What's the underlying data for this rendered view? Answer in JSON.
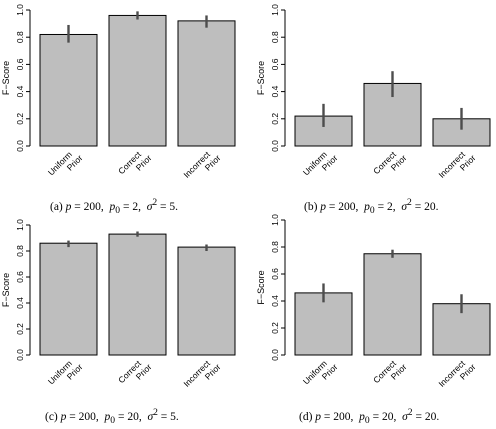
{
  "chart_data": [
    {
      "type": "bar",
      "categories": [
        "Uniform Prior",
        "Correct Prior",
        "Incorrect Prior"
      ],
      "category_lines": [
        [
          "Uniform",
          "Prior"
        ],
        [
          "Correct",
          "Prior"
        ],
        [
          "Incorrect",
          "Prior"
        ]
      ],
      "values": [
        0.82,
        0.96,
        0.92
      ],
      "error_low": [
        0.76,
        0.93,
        0.87
      ],
      "error_high": [
        0.89,
        0.99,
        0.96
      ],
      "ylabel": "F−Score",
      "ylim": [
        0,
        1
      ],
      "yticks": [
        "0.0",
        "0.2",
        "0.4",
        "0.6",
        "0.8",
        "1.0"
      ],
      "caption": {
        "tag": "(a)",
        "p": "200",
        "p0": "2",
        "sigma2": "5"
      }
    },
    {
      "type": "bar",
      "categories": [
        "Uniform Prior",
        "Correct Prior",
        "Incorrect Prior"
      ],
      "category_lines": [
        [
          "Uniform",
          "Prior"
        ],
        [
          "Correct",
          "Prior"
        ],
        [
          "Incorrect",
          "Prior"
        ]
      ],
      "values": [
        0.22,
        0.46,
        0.2
      ],
      "error_low": [
        0.14,
        0.36,
        0.12
      ],
      "error_high": [
        0.31,
        0.55,
        0.28
      ],
      "ylabel": "F−Score",
      "ylim": [
        0,
        1
      ],
      "yticks": [
        "0.0",
        "0.2",
        "0.4",
        "0.6",
        "0.8",
        "1.0"
      ],
      "caption": {
        "tag": "(b)",
        "p": "200",
        "p0": "2",
        "sigma2": "20"
      }
    },
    {
      "type": "bar",
      "categories": [
        "Uniform Prior",
        "Correct Prior",
        "Incorrect Prior"
      ],
      "category_lines": [
        [
          "Uniform",
          "Prior"
        ],
        [
          "Correct",
          "Prior"
        ],
        [
          "Incorrect",
          "Prior"
        ]
      ],
      "values": [
        0.86,
        0.93,
        0.83
      ],
      "error_low": [
        0.83,
        0.91,
        0.8
      ],
      "error_high": [
        0.88,
        0.95,
        0.85
      ],
      "ylabel": "F−Score",
      "ylim": [
        0,
        1
      ],
      "yticks": [
        "0.0",
        "0.2",
        "0.4",
        "0.6",
        "0.8",
        "1.0"
      ],
      "caption": {
        "tag": "(c)",
        "p": "200",
        "p0": "20",
        "sigma2": "5"
      }
    },
    {
      "type": "bar",
      "categories": [
        "Uniform Prior",
        "Correct Prior",
        "Incorrect Prior"
      ],
      "category_lines": [
        [
          "Uniform",
          "Prior"
        ],
        [
          "Correct",
          "Prior"
        ],
        [
          "Incorrect",
          "Prior"
        ]
      ],
      "values": [
        0.46,
        0.75,
        0.38
      ],
      "error_low": [
        0.39,
        0.72,
        0.31
      ],
      "error_high": [
        0.53,
        0.78,
        0.45
      ],
      "ylabel": "F−Score",
      "ylim": [
        0,
        1
      ],
      "yticks": [
        "0.0",
        "0.2",
        "0.4",
        "0.6",
        "0.8",
        "1.0"
      ],
      "caption": {
        "tag": "(d)",
        "p": "200",
        "p0": "20",
        "sigma2": "20"
      }
    }
  ],
  "colors": {
    "bar_fill": "#bebebe",
    "bar_stroke": "#000000",
    "error_bar": "#4d4d4d",
    "text": "#000000"
  }
}
